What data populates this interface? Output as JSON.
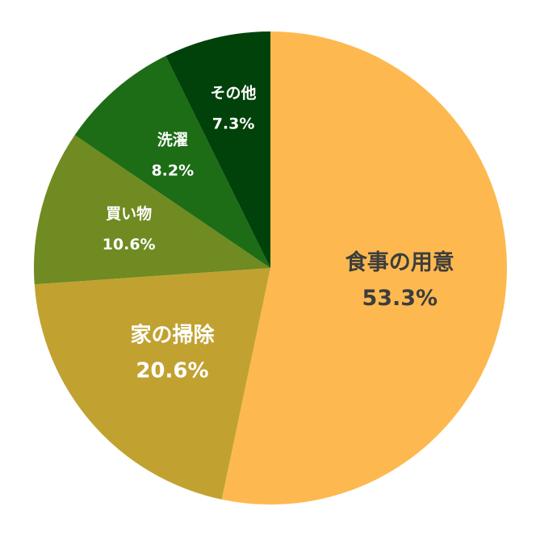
{
  "chart_data": {
    "type": "pie",
    "start_angle_deg": 0,
    "direction": "clockwise",
    "slices": [
      {
        "label": "食事の用意",
        "value": 53.3,
        "value_label": "53.3%",
        "color": "#FDB94F",
        "text_color": "#3D3D3D"
      },
      {
        "label": "家の掃除",
        "value": 20.6,
        "value_label": "20.6%",
        "color": "#C1A231",
        "text_color": "#FFFFFF"
      },
      {
        "label": "買い物",
        "value": 10.6,
        "value_label": "10.6%",
        "color": "#6F8B21",
        "text_color": "#FFFFFF"
      },
      {
        "label": "洗濯",
        "value": 8.2,
        "value_label": "8.2%",
        "color": "#1C6D15",
        "text_color": "#FFFFFF"
      },
      {
        "label": "その他",
        "value": 7.3,
        "value_label": "7.3%",
        "color": "#00420A",
        "text_color": "#FFFFFF"
      }
    ]
  }
}
